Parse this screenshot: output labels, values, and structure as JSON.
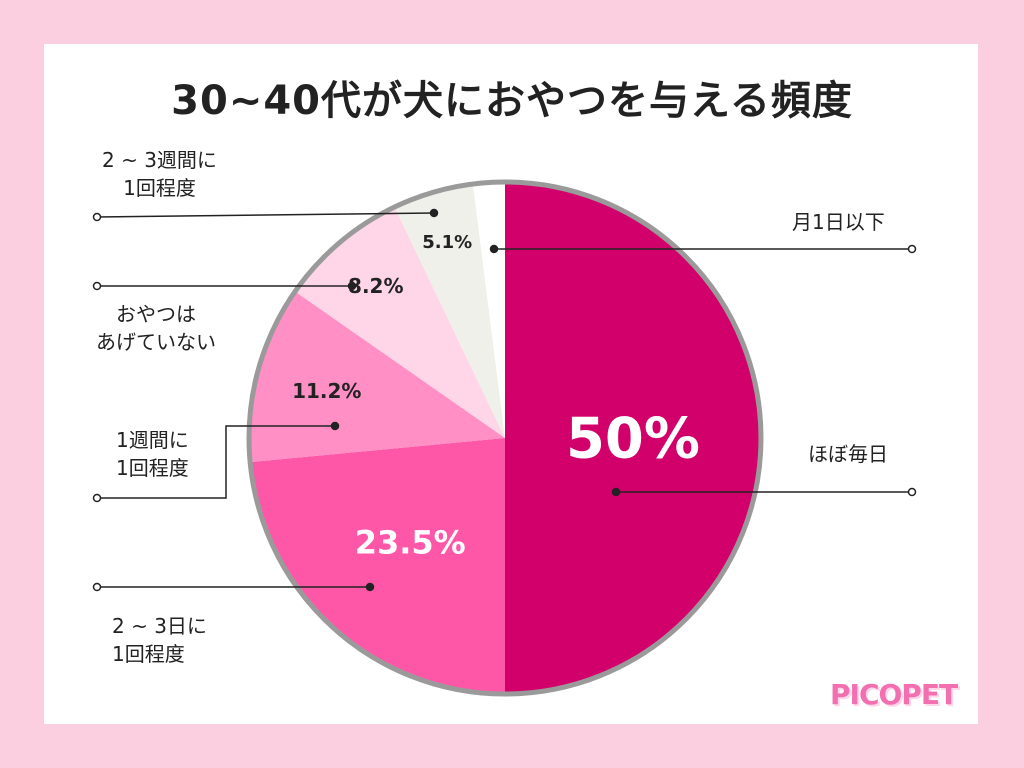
{
  "chart_data": {
    "type": "pie",
    "title": "30~40代が犬におやつを与える頻度",
    "slices": [
      {
        "label_lines": [
          "ほぼ毎日"
        ],
        "value": 50,
        "value_label": "50%",
        "color": "#d1006a"
      },
      {
        "label_lines": [
          "2 ~ 3日に",
          "1回程度"
        ],
        "value": 23.5,
        "value_label": "23.5%",
        "color": "#ff57a8"
      },
      {
        "label_lines": [
          "1週間に",
          "1回程度"
        ],
        "value": 11.2,
        "value_label": "11.2%",
        "color": "#ff8fc4"
      },
      {
        "label_lines": [
          "おやつは",
          "あげていない"
        ],
        "value": 8.2,
        "value_label": "8.2%",
        "color": "#ffd6e8"
      },
      {
        "label_lines": [
          "2 ~ 3週間に",
          "1回程度"
        ],
        "value": 5.1,
        "value_label": "5.1%",
        "color": "#eff0ea"
      },
      {
        "label_lines": [
          "月1日以下"
        ],
        "value": 2.0,
        "value_label": "",
        "color": "#ffffff"
      }
    ]
  },
  "brand": {
    "logo_text": "PICOPET",
    "logo_color": "#f26fb0"
  },
  "colors": {
    "background": "#fccfe0",
    "card": "#ffffff",
    "border": "#9a9a9a",
    "leader": "#222222"
  }
}
